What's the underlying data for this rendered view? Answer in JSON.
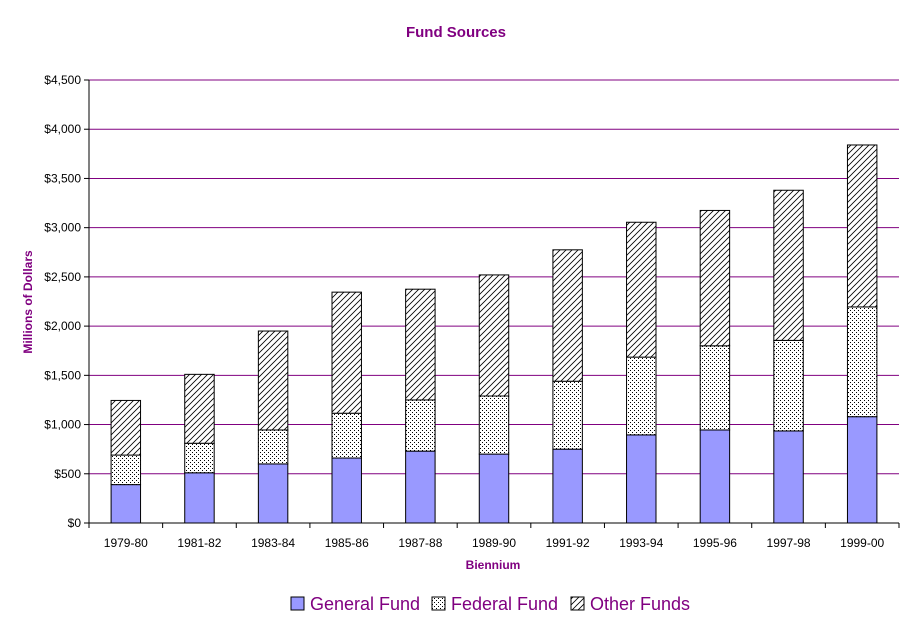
{
  "chart_data": {
    "type": "bar",
    "stacked": true,
    "title": "Fund Sources",
    "xlabel": "Biennium",
    "ylabel": "Millions of Dollars",
    "ylim": [
      0,
      4500
    ],
    "yticks": [
      0,
      500,
      1000,
      1500,
      2000,
      2500,
      3000,
      3500,
      4000,
      4500
    ],
    "ytick_labels": [
      "$0",
      "$500",
      "$1,000",
      "$1,500",
      "$2,000",
      "$2,500",
      "$3,000",
      "$3,500",
      "$4,000",
      "$4,500"
    ],
    "grid": true,
    "legend_position": "bottom",
    "categories": [
      "1979-80",
      "1981-82",
      "1983-84",
      "1985-86",
      "1987-88",
      "1989-90",
      "1991-92",
      "1993-94",
      "1995-96",
      "1997-98",
      "1999-00"
    ],
    "series": [
      {
        "name": "General Fund",
        "pattern": "solid",
        "color": "#9999ff",
        "values": [
          390,
          510,
          600,
          660,
          730,
          700,
          750,
          895,
          945,
          935,
          1080
        ]
      },
      {
        "name": "Federal Fund",
        "pattern": "dots",
        "color": "#ffffff",
        "values": [
          300,
          300,
          345,
          455,
          520,
          590,
          690,
          790,
          855,
          920,
          1115
        ]
      },
      {
        "name": "Other Funds",
        "pattern": "hatch",
        "color": "#ffffff",
        "values": [
          555,
          700,
          1005,
          1230,
          1125,
          1230,
          1335,
          1370,
          1375,
          1525,
          1645
        ]
      }
    ],
    "colors": {
      "title": "#800080",
      "axis_title": "#800080",
      "gridline": "#800080",
      "legend_text": "#800080",
      "tick_text": "#000000"
    }
  }
}
